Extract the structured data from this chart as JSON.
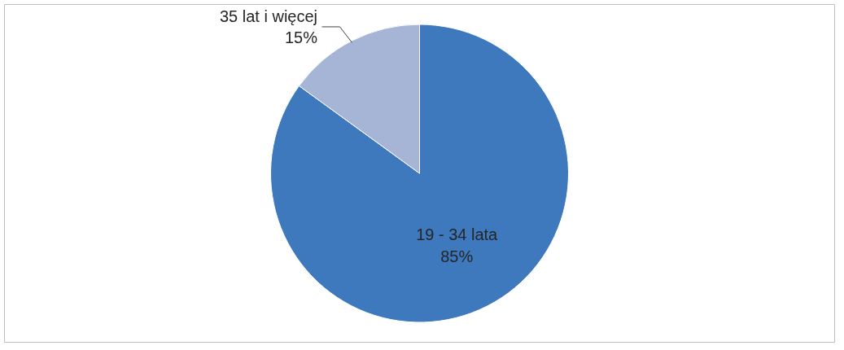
{
  "chart_data": {
    "type": "pie",
    "categories": [
      "19 - 34 lata",
      "35 lat i więcej"
    ],
    "values": [
      85,
      15
    ],
    "colors": [
      "#3d79bc",
      "#a6b5d6"
    ],
    "value_labels": [
      "85%",
      "15%"
    ]
  }
}
